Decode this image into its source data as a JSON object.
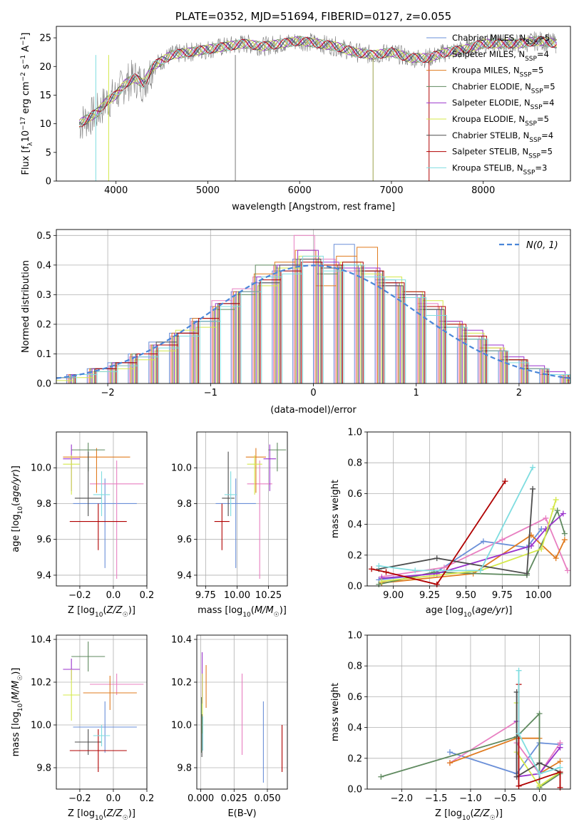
{
  "chart_data": [
    {
      "type": "line",
      "title": "PLATE=0352, MJD=51694, FIBERID=0127, z=0.055",
      "xlabel": "wavelength [Angstrom, rest frame]",
      "ylabel": "Flux [f_λ10^-17 erg cm^-2 s^-1 A^-1]",
      "xlim": [
        3350,
        8950
      ],
      "ylim": [
        0,
        27
      ],
      "xticks": [
        4000,
        5000,
        6000,
        7000,
        8000
      ],
      "yticks": [
        0,
        5,
        10,
        15,
        20,
        25
      ],
      "legend_position": "upper right",
      "series": [
        {
          "name": "Chabrier MILES, N_SSP=5",
          "color": "#6a8fd8"
        },
        {
          "name": "Salpeter MILES, N_SSP=4",
          "color": "#e87fc1"
        },
        {
          "name": "Kroupa MILES, N_SSP=5",
          "color": "#e07b1f"
        },
        {
          "name": "Chabrier ELODIE, N_SSP=5",
          "color": "#5f8a5f"
        },
        {
          "name": "Salpeter ELODIE, N_SSP=4",
          "color": "#9932cc"
        },
        {
          "name": "Kroupa ELODIE, N_SSP=5",
          "color": "#d4e84a"
        },
        {
          "name": "Chabrier STELIB, N_SSP=4",
          "color": "#4d4d4d"
        },
        {
          "name": "Salpeter STELIB, N_SSP=5",
          "color": "#b00000"
        },
        {
          "name": "Kroupa STELIB, N_SSP=3",
          "color": "#7fdde0"
        }
      ],
      "data_wavelength": [
        3600,
        3700,
        3800,
        3900,
        4000,
        4100,
        4200,
        4300,
        4400,
        4500,
        4600,
        4800,
        5000,
        5200,
        5400,
        5600,
        5800,
        6000,
        6200,
        6400,
        6600,
        6800,
        7000,
        7200,
        7400,
        7600,
        7800,
        8000,
        8200,
        8400,
        8600,
        8800
      ],
      "data_flux": [
        10,
        11,
        12,
        14,
        15,
        17,
        18,
        17,
        20,
        21,
        22,
        22.5,
        23,
        23.5,
        24,
        23.5,
        24,
        24.5,
        24,
        23.5,
        22.5,
        22,
        22.5,
        21.5,
        21.5,
        22.5,
        23,
        24,
        24,
        24,
        24.5,
        24
      ]
    },
    {
      "type": "bar",
      "xlabel": "(data-model)/error",
      "ylabel": "Normed distribution",
      "xlim": [
        -2.5,
        2.5
      ],
      "ylim": [
        0,
        0.52
      ],
      "xticks": [
        -2,
        -1,
        0,
        1,
        2
      ],
      "yticks": [
        0.0,
        0.1,
        0.2,
        0.3,
        0.4,
        0.5
      ],
      "legend": [
        "N(0, 1)"
      ],
      "gaussian": {
        "mean": 0,
        "sigma": 1
      },
      "bin_edges": [
        -2.6,
        -2.4,
        -2.2,
        -2.0,
        -1.8,
        -1.6,
        -1.4,
        -1.2,
        -1.0,
        -0.8,
        -0.6,
        -0.4,
        -0.2,
        0.0,
        0.2,
        0.4,
        0.6,
        0.8,
        1.0,
        1.2,
        1.4,
        1.6,
        1.8,
        2.0,
        2.2,
        2.4,
        2.6
      ],
      "histograms": [
        [
          0.02,
          0.03,
          0.05,
          0.07,
          0.1,
          0.14,
          0.17,
          0.22,
          0.26,
          0.31,
          0.34,
          0.38,
          0.42,
          0.4,
          0.47,
          0.38,
          0.35,
          0.3,
          0.25,
          0.19,
          0.15,
          0.11,
          0.08,
          0.05,
          0.03,
          0.02
        ],
        [
          0.02,
          0.03,
          0.04,
          0.06,
          0.09,
          0.13,
          0.16,
          0.21,
          0.28,
          0.32,
          0.36,
          0.4,
          0.5,
          0.42,
          0.38,
          0.39,
          0.34,
          0.3,
          0.27,
          0.2,
          0.16,
          0.12,
          0.08,
          0.05,
          0.03,
          0.02
        ],
        [
          0.02,
          0.03,
          0.05,
          0.06,
          0.1,
          0.13,
          0.17,
          0.22,
          0.26,
          0.31,
          0.37,
          0.41,
          0.45,
          0.33,
          0.43,
          0.46,
          0.33,
          0.29,
          0.26,
          0.21,
          0.15,
          0.12,
          0.08,
          0.05,
          0.03,
          0.02
        ],
        [
          0.02,
          0.03,
          0.05,
          0.07,
          0.1,
          0.13,
          0.16,
          0.21,
          0.25,
          0.3,
          0.4,
          0.39,
          0.42,
          0.37,
          0.4,
          0.38,
          0.34,
          0.29,
          0.25,
          0.2,
          0.16,
          0.11,
          0.08,
          0.05,
          0.03,
          0.02
        ],
        [
          0.02,
          0.03,
          0.05,
          0.07,
          0.09,
          0.13,
          0.17,
          0.21,
          0.27,
          0.31,
          0.36,
          0.4,
          0.45,
          0.41,
          0.39,
          0.39,
          0.33,
          0.3,
          0.26,
          0.21,
          0.18,
          0.13,
          0.09,
          0.06,
          0.04,
          0.02
        ],
        [
          0.01,
          0.02,
          0.04,
          0.05,
          0.08,
          0.11,
          0.18,
          0.19,
          0.26,
          0.31,
          0.33,
          0.39,
          0.43,
          0.4,
          0.41,
          0.37,
          0.36,
          0.31,
          0.28,
          0.2,
          0.17,
          0.12,
          0.08,
          0.05,
          0.03,
          0.01
        ],
        [
          0.02,
          0.03,
          0.05,
          0.07,
          0.1,
          0.14,
          0.17,
          0.21,
          0.27,
          0.31,
          0.34,
          0.4,
          0.42,
          0.39,
          0.4,
          0.38,
          0.33,
          0.3,
          0.25,
          0.19,
          0.15,
          0.11,
          0.08,
          0.05,
          0.03,
          0.02
        ],
        [
          0.02,
          0.03,
          0.05,
          0.07,
          0.1,
          0.13,
          0.17,
          0.22,
          0.27,
          0.31,
          0.35,
          0.38,
          0.41,
          0.4,
          0.41,
          0.38,
          0.34,
          0.31,
          0.26,
          0.2,
          0.16,
          0.11,
          0.08,
          0.05,
          0.03,
          0.02
        ],
        [
          0.02,
          0.03,
          0.04,
          0.06,
          0.09,
          0.12,
          0.16,
          0.21,
          0.26,
          0.31,
          0.36,
          0.37,
          0.43,
          0.38,
          0.4,
          0.36,
          0.35,
          0.29,
          0.23,
          0.19,
          0.15,
          0.11,
          0.07,
          0.05,
          0.03,
          0.02
        ]
      ]
    },
    {
      "type": "scatter",
      "xlabel": "Z [log10(Z/Z☉)]",
      "ylabel": "age [log10(age/yr)]",
      "xlim": [
        -0.34,
        0.2
      ],
      "ylim": [
        9.34,
        10.2
      ],
      "xticks": [
        -0.2,
        0.0,
        0.2
      ],
      "yticks": [
        9.4,
        9.6,
        9.8,
        10.0
      ],
      "points": [
        {
          "x": -0.05,
          "y": 9.8,
          "xerr": 0.19,
          "yerr": [
            0.36,
            0.14
          ]
        },
        {
          "x": 0.02,
          "y": 9.91,
          "xerr": 0.16,
          "yerr": [
            0.53,
            0.13
          ]
        },
        {
          "x": -0.1,
          "y": 10.06,
          "xerr": 0.2,
          "yerr": [
            0.2,
            0.05
          ]
        },
        {
          "x": -0.15,
          "y": 10.1,
          "xerr": 0.1,
          "yerr": [
            0.12,
            0.04
          ]
        },
        {
          "x": -0.25,
          "y": 10.05,
          "xerr": 0.05,
          "yerr": [
            0.18,
            0.08
          ]
        },
        {
          "x": -0.25,
          "y": 10.02,
          "xerr": 0.05,
          "yerr": [
            0.17,
            0.05
          ]
        },
        {
          "x": -0.15,
          "y": 9.83,
          "xerr": 0.08,
          "yerr": [
            0.1,
            0.26
          ]
        },
        {
          "x": -0.09,
          "y": 9.7,
          "xerr": 0.17,
          "yerr": [
            0.16,
            0.1
          ]
        },
        {
          "x": -0.07,
          "y": 9.85,
          "xerr": 0.05,
          "yerr": [
            0.12,
            0.13
          ]
        }
      ]
    },
    {
      "type": "scatter",
      "xlabel": "mass [log10(M/M☉)]",
      "xlim": [
        9.68,
        10.4
      ],
      "ylim": [
        9.34,
        10.2
      ],
      "xticks": [
        9.75,
        10.0,
        10.25
      ],
      "yticks": [
        9.4,
        9.6,
        9.8,
        10.0
      ],
      "points": [
        {
          "x": 9.99,
          "y": 9.8,
          "xerr": 0.16,
          "yerr": [
            0.36,
            0.14
          ]
        },
        {
          "x": 10.18,
          "y": 9.91,
          "xerr": 0.1,
          "yerr": [
            0.53,
            0.13
          ]
        },
        {
          "x": 10.15,
          "y": 10.06,
          "xerr": 0.08,
          "yerr": [
            0.2,
            0.05
          ]
        },
        {
          "x": 10.32,
          "y": 10.1,
          "xerr": 0.07,
          "yerr": [
            0.12,
            0.04
          ]
        },
        {
          "x": 10.26,
          "y": 10.05,
          "xerr": 0.05,
          "yerr": [
            0.18,
            0.08
          ]
        },
        {
          "x": 10.14,
          "y": 10.02,
          "xerr": 0.06,
          "yerr": [
            0.17,
            0.05
          ]
        },
        {
          "x": 9.93,
          "y": 9.83,
          "xerr": 0.05,
          "yerr": [
            0.1,
            0.26
          ]
        },
        {
          "x": 9.88,
          "y": 9.7,
          "xerr": 0.06,
          "yerr": [
            0.16,
            0.1
          ]
        },
        {
          "x": 9.95,
          "y": 9.85,
          "xerr": 0.05,
          "yerr": [
            0.12,
            0.13
          ]
        }
      ]
    },
    {
      "type": "line",
      "xlabel": "age [log10(age/yr)]",
      "ylabel": "mass weight",
      "xlim": [
        8.82,
        10.22
      ],
      "ylim": [
        0.0,
        1.0
      ],
      "xticks": [
        9.0,
        9.25,
        9.5,
        9.75,
        10.0
      ],
      "yticks": [
        0.0,
        0.2,
        0.4,
        0.6,
        0.8,
        1.0
      ],
      "series": [
        {
          "x": [
            8.9,
            9.28,
            9.62,
            9.92,
            10.02
          ],
          "y": [
            0.04,
            0.08,
            0.29,
            0.25,
            0.37
          ]
        },
        {
          "x": [
            8.92,
            9.35,
            9.75,
            10.05,
            10.2
          ],
          "y": [
            0.06,
            0.12,
            0.3,
            0.44,
            0.1
          ]
        },
        {
          "x": [
            8.92,
            9.55,
            9.95,
            10.12,
            10.18
          ],
          "y": [
            0.02,
            0.08,
            0.33,
            0.18,
            0.3
          ]
        },
        {
          "x": [
            8.9,
            9.28,
            9.92,
            10.13,
            10.18
          ],
          "y": [
            0.01,
            0.09,
            0.07,
            0.49,
            0.34
          ]
        },
        {
          "x": [
            8.92,
            9.3,
            9.95,
            10.05,
            10.17
          ],
          "y": [
            0.05,
            0.08,
            0.26,
            0.37,
            0.47
          ]
        },
        {
          "x": [
            8.92,
            9.6,
            10.02,
            10.12,
            10.1
          ],
          "y": [
            0.03,
            0.1,
            0.24,
            0.56,
            0.5
          ]
        },
        {
          "x": [
            8.9,
            9.3,
            9.92,
            9.96
          ],
          "y": [
            0.11,
            0.18,
            0.08,
            0.63
          ]
        },
        {
          "x": [
            8.85,
            8.95,
            9.3,
            9.77
          ],
          "y": [
            0.11,
            0.09,
            0.01,
            0.68
          ]
        },
        {
          "x": [
            8.9,
            9.15,
            9.6,
            9.96
          ],
          "y": [
            0.13,
            0.1,
            0.1,
            0.77
          ]
        }
      ]
    },
    {
      "type": "scatter",
      "xlabel": "Z [log10(Z/Z☉)]",
      "ylabel": "mass [log10(M/M☉)]",
      "xlim": [
        -0.34,
        0.2
      ],
      "ylim": [
        9.7,
        10.42
      ],
      "xticks": [
        -0.2,
        0.0,
        0.2
      ],
      "yticks": [
        9.8,
        10.0,
        10.2,
        10.4
      ],
      "points": [
        {
          "x": -0.05,
          "y": 9.99,
          "xerr": 0.19,
          "yerr": 0.12
        },
        {
          "x": 0.02,
          "y": 10.19,
          "xerr": 0.16,
          "yerr": 0.05
        },
        {
          "x": -0.02,
          "y": 10.15,
          "xerr": 0.16,
          "yerr": 0.08
        },
        {
          "x": -0.15,
          "y": 10.32,
          "xerr": 0.1,
          "yerr": 0.07
        },
        {
          "x": -0.25,
          "y": 10.26,
          "xerr": 0.05,
          "yerr": 0.05
        },
        {
          "x": -0.25,
          "y": 10.14,
          "xerr": 0.05,
          "yerr": 0.12
        },
        {
          "x": -0.15,
          "y": 9.92,
          "xerr": 0.08,
          "yerr": 0.06
        },
        {
          "x": -0.09,
          "y": 9.88,
          "xerr": 0.17,
          "yerr": 0.1
        },
        {
          "x": -0.07,
          "y": 9.95,
          "xerr": 0.05,
          "yerr": 0.05
        }
      ]
    },
    {
      "type": "scatter",
      "xlabel": "E(B-V)",
      "xlim": [
        -0.003,
        0.065
      ],
      "ylim": [
        9.7,
        10.42
      ],
      "xticks": [
        0.0,
        0.025,
        0.05
      ],
      "yticks": [
        9.8,
        10.0,
        10.2,
        10.4
      ],
      "points": [
        {
          "x": 0.047,
          "y": 9.92,
          "yerr": 0.19
        },
        {
          "x": 0.031,
          "y": 10.05,
          "yerr": 0.19
        },
        {
          "x": 0.004,
          "y": 10.18,
          "yerr": 0.1
        },
        {
          "x": 0.0005,
          "y": 10.0,
          "yerr": 0.13
        },
        {
          "x": 0.001,
          "y": 10.22,
          "yerr": 0.12
        },
        {
          "x": 0.0012,
          "y": 10.1,
          "yerr": 0.14
        },
        {
          "x": 0.0008,
          "y": 9.95,
          "yerr": 0.1
        },
        {
          "x": 0.061,
          "y": 9.89,
          "yerr": 0.11
        },
        {
          "x": 0.0015,
          "y": 9.96,
          "yerr": 0.08
        }
      ]
    },
    {
      "type": "line",
      "xlabel": "Z [log10(Z/Z☉)]",
      "ylabel": "mass weight",
      "xlim": [
        -2.5,
        0.45
      ],
      "ylim": [
        0.0,
        1.0
      ],
      "xticks": [
        -2.0,
        -1.5,
        -1.0,
        -0.5,
        0.0
      ],
      "yticks": [
        0.0,
        0.2,
        0.4,
        0.6,
        0.8,
        1.0
      ],
      "series": [
        {
          "x": [
            -1.3,
            -0.33,
            0.0,
            0.3
          ],
          "y": [
            0.24,
            0.1,
            0.3,
            0.29
          ]
        },
        {
          "x": [
            -1.3,
            -0.33,
            -0.33,
            0.0,
            0.3
          ],
          "y": [
            0.17,
            0.44,
            0.3,
            0.1,
            0.3
          ]
        },
        {
          "x": [
            -1.3,
            -0.33,
            0.0,
            0.0,
            0.3
          ],
          "y": [
            0.17,
            0.33,
            0.33,
            0.1,
            0.18
          ]
        },
        {
          "x": [
            -2.3,
            -0.33,
            0.0,
            0.0,
            0.3
          ],
          "y": [
            0.08,
            0.34,
            0.49,
            0.01,
            0.1
          ]
        },
        {
          "x": [
            -0.33,
            -0.33,
            0.0,
            0.3
          ],
          "y": [
            0.44,
            0.08,
            0.1,
            0.27
          ]
        },
        {
          "x": [
            -0.33,
            -0.33,
            0.0,
            0.3
          ],
          "y": [
            0.56,
            0.24,
            0.02,
            0.11
          ]
        },
        {
          "x": [
            -0.33,
            -0.33,
            0.0,
            0.3
          ],
          "y": [
            0.63,
            0.08,
            0.17,
            0.11
          ]
        },
        {
          "x": [
            -0.3,
            -0.3,
            0.3,
            0.3
          ],
          "y": [
            0.68,
            0.02,
            0.11,
            0.01
          ]
        },
        {
          "x": [
            -0.3,
            -0.3,
            0.0,
            0.3
          ],
          "y": [
            0.77,
            0.36,
            0.1,
            0.14
          ]
        }
      ]
    }
  ]
}
